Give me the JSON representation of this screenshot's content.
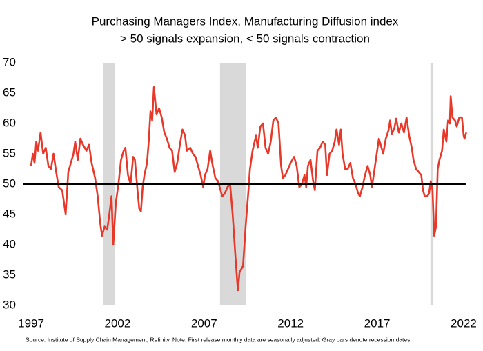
{
  "chart_data": {
    "type": "line",
    "title": "Purchasing Managers Index, Manufacturing Diffusion index",
    "subtitle": "> 50 signals expansion, < 50 signals contraction",
    "note": "Source: Institute of Supply Chain Management, Refinitv.  Note: First release monthly data are seasonally adjusted. Gray bars denote recession dates.",
    "x": [
      1997.0,
      1997.1,
      1997.2,
      1997.3,
      1997.4,
      1997.55,
      1997.7,
      1997.85,
      1998.0,
      1998.15,
      1998.3,
      1998.45,
      1998.6,
      1998.8,
      1998.95,
      1999.0,
      1999.15,
      1999.3,
      1999.45,
      1999.55,
      1999.7,
      1999.85,
      2000.0,
      2000.2,
      2000.35,
      2000.5,
      2000.7,
      2000.85,
      2001.0,
      2001.1,
      2001.25,
      2001.4,
      2001.5,
      2001.65,
      2001.75,
      2001.9,
      2002.05,
      2002.2,
      2002.35,
      2002.45,
      2002.6,
      2002.75,
      2002.9,
      2003.0,
      2003.15,
      2003.25,
      2003.35,
      2003.45,
      2003.55,
      2003.7,
      2003.8,
      2003.9,
      2004.0,
      2004.1,
      2004.25,
      2004.4,
      2004.55,
      2004.7,
      2004.85,
      2005.0,
      2005.15,
      2005.3,
      2005.45,
      2005.6,
      2005.75,
      2005.9,
      2006.0,
      2006.2,
      2006.35,
      2006.5,
      2006.65,
      2006.8,
      2006.95,
      2007.05,
      2007.2,
      2007.35,
      2007.5,
      2007.65,
      2007.8,
      2007.95,
      2008.05,
      2008.2,
      2008.35,
      2008.5,
      2008.65,
      2008.8,
      2008.95,
      2009.05,
      2009.25,
      2009.4,
      2009.55,
      2009.65,
      2009.8,
      2010.0,
      2010.1,
      2010.25,
      2010.4,
      2010.55,
      2010.7,
      2010.85,
      2011.0,
      2011.15,
      2011.3,
      2011.45,
      2011.55,
      2011.7,
      2011.85,
      2012.0,
      2012.2,
      2012.35,
      2012.5,
      2012.65,
      2012.8,
      2012.9,
      2013.0,
      2013.15,
      2013.3,
      2013.4,
      2013.55,
      2013.7,
      2013.85,
      2014.0,
      2014.1,
      2014.25,
      2014.4,
      2014.55,
      2014.65,
      2014.8,
      2014.9,
      2015.0,
      2015.15,
      2015.3,
      2015.45,
      2015.6,
      2015.75,
      2015.9,
      2016.0,
      2016.15,
      2016.3,
      2016.45,
      2016.6,
      2016.7,
      2016.8,
      2016.95,
      2017.1,
      2017.25,
      2017.35,
      2017.5,
      2017.65,
      2017.75,
      2017.85,
      2018.0,
      2018.1,
      2018.25,
      2018.4,
      2018.55,
      2018.7,
      2018.85,
      2019.0,
      2019.1,
      2019.25,
      2019.4,
      2019.55,
      2019.65,
      2019.75,
      2019.9,
      2020.0,
      2020.1,
      2020.2,
      2020.3,
      2020.4,
      2020.5,
      2020.6,
      2020.75,
      2020.85,
      2021.0,
      2021.1,
      2021.2,
      2021.25,
      2021.35,
      2021.5,
      2021.6,
      2021.75,
      2021.9,
      2022.0,
      2022.05,
      2022.15
    ],
    "series": [
      {
        "color": "#e8382a",
        "values": [
          53,
          55,
          53.5,
          57,
          55.5,
          58.5,
          55,
          56,
          53,
          52.5,
          55,
          52,
          49.5,
          49,
          46,
          45,
          52,
          53.5,
          55,
          57,
          54,
          57.5,
          56.5,
          55.5,
          56.5,
          53.5,
          51,
          48,
          43.5,
          41.5,
          43,
          42.5,
          44.5,
          48,
          40,
          47,
          50,
          54,
          55.5,
          56,
          51.5,
          50,
          54.5,
          54,
          49,
          46,
          45.5,
          49.5,
          51.5,
          53.5,
          57,
          62,
          60.5,
          66,
          61.5,
          62.5,
          61,
          58.5,
          57.5,
          56,
          55.5,
          52,
          53.5,
          56.5,
          59,
          58,
          55.5,
          56,
          55,
          54.5,
          53,
          51.5,
          49.5,
          51.5,
          52.5,
          55.5,
          53,
          51,
          50.5,
          49,
          48,
          48.5,
          49.5,
          50,
          45,
          38.5,
          32.5,
          35.5,
          36.5,
          43,
          48.5,
          52.5,
          55.5,
          58,
          56,
          59.5,
          60,
          56,
          55,
          57,
          60.5,
          61,
          60,
          53,
          51,
          51.5,
          52.5,
          53.5,
          54.5,
          53,
          49.5,
          50,
          51.5,
          49.5,
          53,
          54,
          50.5,
          49,
          55.5,
          56,
          57,
          56.5,
          51.5,
          55,
          55.5,
          57,
          59,
          56.5,
          59,
          55,
          52.5,
          52.5,
          53.5,
          51,
          50,
          48.5,
          48,
          49.5,
          51.5,
          53,
          51.5,
          49.5,
          51.5,
          54.5,
          57.5,
          56,
          55,
          57.5,
          58.8,
          60.5,
          58.2,
          59.3,
          60.8,
          58.5,
          60,
          58.5,
          61,
          58,
          56,
          54,
          52.5,
          52,
          51.5,
          49,
          48,
          48,
          48.5,
          50.5,
          49,
          41.5,
          43,
          52.5,
          54,
          55.5,
          59,
          57,
          60.5,
          60,
          64.5,
          61,
          60.5,
          59.5,
          61,
          61,
          58,
          57.5,
          58.5
        ]
      }
    ],
    "reference_line": 50,
    "reference_color": "#000000",
    "recessions": [
      [
        2001.17,
        2001.83
      ],
      [
        2007.92,
        2009.42
      ],
      [
        2020.08,
        2020.25
      ]
    ],
    "recession_color": "#d9d9d9",
    "xlim": [
      1996.64,
      2022.32
    ],
    "xticks": [
      1997,
      2002,
      2007,
      2012,
      2017,
      2022
    ],
    "ylim": [
      30,
      70
    ],
    "yticks": [
      30,
      35,
      40,
      45,
      50,
      55,
      60,
      65,
      70
    ],
    "grid": false
  }
}
